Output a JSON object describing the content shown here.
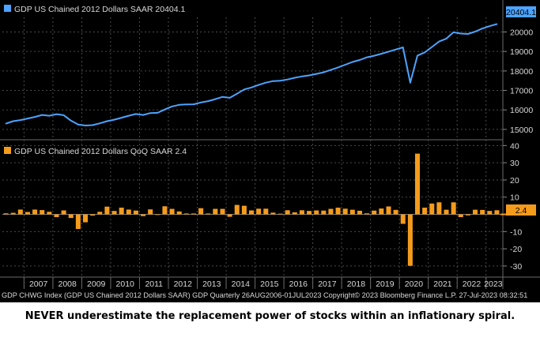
{
  "chart_data": [
    {
      "type": "line",
      "legend": "GDP US Chained 2012 Dollars SAAR 20404.1",
      "last_value_label": "20404.1",
      "x": [
        "2006Q2",
        "2006Q3",
        "2006Q4",
        "2007Q1",
        "2007Q2",
        "2007Q3",
        "2007Q4",
        "2008Q1",
        "2008Q2",
        "2008Q3",
        "2008Q4",
        "2009Q1",
        "2009Q2",
        "2009Q3",
        "2009Q4",
        "2010Q1",
        "2010Q2",
        "2010Q3",
        "2010Q4",
        "2011Q1",
        "2011Q2",
        "2011Q3",
        "2011Q4",
        "2012Q1",
        "2012Q2",
        "2012Q3",
        "2012Q4",
        "2013Q1",
        "2013Q2",
        "2013Q3",
        "2013Q4",
        "2014Q1",
        "2014Q2",
        "2014Q3",
        "2014Q4",
        "2015Q1",
        "2015Q2",
        "2015Q3",
        "2015Q4",
        "2016Q1",
        "2016Q2",
        "2016Q3",
        "2016Q4",
        "2017Q1",
        "2017Q2",
        "2017Q3",
        "2017Q4",
        "2018Q1",
        "2018Q2",
        "2018Q3",
        "2018Q4",
        "2019Q1",
        "2019Q2",
        "2019Q3",
        "2019Q4",
        "2020Q1",
        "2020Q2",
        "2020Q3",
        "2020Q4",
        "2021Q1",
        "2021Q2",
        "2021Q3",
        "2021Q4",
        "2022Q1",
        "2022Q2",
        "2022Q3",
        "2022Q4",
        "2023Q1",
        "2023Q2"
      ],
      "values": [
        15300,
        15420,
        15480,
        15560,
        15640,
        15740,
        15700,
        15780,
        15730,
        15450,
        15250,
        15200,
        15220,
        15310,
        15420,
        15500,
        15600,
        15700,
        15790,
        15740,
        15840,
        15850,
        16020,
        16180,
        16260,
        16280,
        16290,
        16380,
        16450,
        16550,
        16670,
        16620,
        16830,
        17050,
        17150,
        17280,
        17400,
        17480,
        17500,
        17560,
        17650,
        17720,
        17770,
        17850,
        17930,
        18050,
        18180,
        18320,
        18460,
        18560,
        18700,
        18780,
        18880,
        18990,
        19100,
        19210,
        17400,
        18790,
        18950,
        19230,
        19510,
        19660,
        19990,
        19920,
        19900,
        20020,
        20180,
        20300,
        20404.1
      ],
      "yticks": [
        15000,
        16000,
        17000,
        18000,
        19000,
        20000
      ],
      "ylim": [
        14550,
        20750
      ]
    },
    {
      "type": "bar",
      "legend": "GDP US Chained 2012 Dollars QoQ SAAR 2.4",
      "last_value_label": "2.4",
      "x": [
        "2006Q2",
        "2006Q3",
        "2006Q4",
        "2007Q1",
        "2007Q2",
        "2007Q3",
        "2007Q4",
        "2008Q1",
        "2008Q2",
        "2008Q3",
        "2008Q4",
        "2009Q1",
        "2009Q2",
        "2009Q3",
        "2009Q4",
        "2010Q1",
        "2010Q2",
        "2010Q3",
        "2010Q4",
        "2011Q1",
        "2011Q2",
        "2011Q3",
        "2011Q4",
        "2012Q1",
        "2012Q2",
        "2012Q3",
        "2012Q4",
        "2013Q1",
        "2013Q2",
        "2013Q3",
        "2013Q4",
        "2014Q1",
        "2014Q2",
        "2014Q3",
        "2014Q4",
        "2015Q1",
        "2015Q2",
        "2015Q3",
        "2015Q4",
        "2016Q1",
        "2016Q2",
        "2016Q3",
        "2016Q4",
        "2017Q1",
        "2017Q2",
        "2017Q3",
        "2017Q4",
        "2018Q1",
        "2018Q2",
        "2018Q3",
        "2018Q4",
        "2019Q1",
        "2019Q2",
        "2019Q3",
        "2019Q4",
        "2020Q1",
        "2020Q2",
        "2020Q3",
        "2020Q4",
        "2021Q1",
        "2021Q2",
        "2021Q3",
        "2021Q4",
        "2022Q1",
        "2022Q2",
        "2022Q3",
        "2022Q4",
        "2023Q1",
        "2023Q2"
      ],
      "values": [
        0.6,
        0.9,
        2.8,
        1.4,
        2.8,
        2.5,
        1.5,
        -1.6,
        2.3,
        -2.1,
        -8.5,
        -4.6,
        -0.7,
        1.5,
        4.5,
        2.0,
        3.9,
        2.8,
        2.2,
        -1.0,
        2.9,
        -0.1,
        4.7,
        3.2,
        1.7,
        0.5,
        0.5,
        3.6,
        0.5,
        3.2,
        3.2,
        -1.4,
        5.5,
        5.0,
        2.3,
        3.3,
        3.3,
        1.0,
        0.4,
        2.4,
        1.2,
        2.4,
        2.0,
        2.3,
        2.2,
        3.2,
        3.9,
        3.3,
        2.7,
        2.1,
        0.6,
        2.2,
        3.4,
        4.6,
        2.6,
        -5.5,
        -29.9,
        35.3,
        3.9,
        6.3,
        7.0,
        2.7,
        7.0,
        -1.6,
        -0.6,
        2.7,
        2.6,
        2.0,
        2.4
      ],
      "yticks": [
        -30,
        -20,
        -10,
        0,
        10,
        20,
        30,
        40
      ],
      "ylim": [
        -36,
        42
      ]
    }
  ],
  "x_axis": {
    "year_labels": [
      "2007",
      "2008",
      "2009",
      "2010",
      "2011",
      "2012",
      "2013",
      "2014",
      "2015",
      "2016",
      "2017",
      "2018",
      "2019",
      "2020",
      "2021",
      "2022",
      "2023"
    ]
  },
  "footer": "GDP CHWG Index (GDP US Chained 2012 Dollars SAAR) GDP  Quarterly 26AUG2006-01JUL2023 Copyright© 2023 Bloomberg Finance L.P. 27-Jul-2023 08:32:51",
  "caption": "NEVER underestimate the replacement power of stocks within an inflationary spiral.",
  "colors": {
    "line": "#4da3ff",
    "bar": "#f59b1c",
    "background": "#000000",
    "grid": "#4a4a4a",
    "text": "#d8d8d8"
  }
}
